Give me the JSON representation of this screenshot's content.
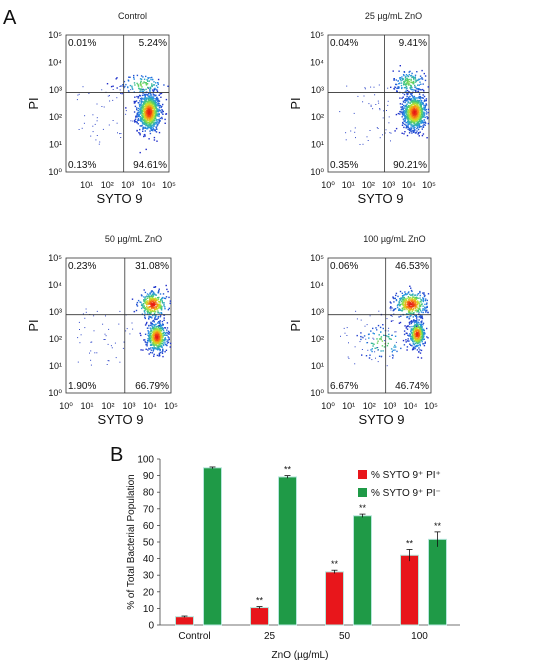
{
  "panel_a_label": "A",
  "panel_b_label": "B",
  "chart_data": [
    {
      "type": "scatter",
      "title": "Control",
      "xlabel": "SYTO 9",
      "ylabel": "PI",
      "x_scale": "log",
      "y_scale": "log",
      "x_ticks": [
        "10¹",
        "10²",
        "10³",
        "10⁴",
        "10⁵"
      ],
      "y_ticks": [
        "10⁰",
        "10¹",
        "10²",
        "10³",
        "10⁴",
        "10⁵"
      ],
      "quadrants": {
        "upper_left": "0.01%",
        "upper_right": "5.24%",
        "lower_left": "0.13%",
        "lower_right": "94.61%"
      }
    },
    {
      "type": "scatter",
      "title": "25 µg/mL ZnO",
      "xlabel": "SYTO 9",
      "ylabel": "PI",
      "x_scale": "log",
      "y_scale": "log",
      "x_ticks": [
        "10⁰",
        "10¹",
        "10²",
        "10³",
        "10⁴",
        "10⁵"
      ],
      "y_ticks": [
        "10⁰",
        "10¹",
        "10²",
        "10³",
        "10⁴",
        "10⁵"
      ],
      "quadrants": {
        "upper_left": "0.04%",
        "upper_right": "9.41%",
        "lower_left": "0.35%",
        "lower_right": "90.21%"
      }
    },
    {
      "type": "scatter",
      "title": "50 µg/mL ZnO",
      "xlabel": "SYTO 9",
      "ylabel": "PI",
      "x_scale": "log",
      "y_scale": "log",
      "x_ticks": [
        "10⁰",
        "10¹",
        "10²",
        "10³",
        "10⁴",
        "10⁵"
      ],
      "y_ticks": [
        "10⁰",
        "10¹",
        "10²",
        "10³",
        "10⁴",
        "10⁵"
      ],
      "quadrants": {
        "upper_left": "0.23%",
        "upper_right": "31.08%",
        "lower_left": "1.90%",
        "lower_right": "66.79%"
      }
    },
    {
      "type": "scatter",
      "title": "100 µg/mL ZnO",
      "xlabel": "SYTO 9",
      "ylabel": "PI",
      "x_scale": "log",
      "y_scale": "log",
      "x_ticks": [
        "10⁰",
        "10¹",
        "10²",
        "10³",
        "10⁴",
        "10⁵"
      ],
      "y_ticks": [
        "10⁰",
        "10¹",
        "10²",
        "10³",
        "10⁴",
        "10⁵"
      ],
      "quadrants": {
        "upper_left": "0.06%",
        "upper_right": "46.53%",
        "lower_left": "6.67%",
        "lower_right": "46.74%"
      }
    },
    {
      "type": "bar",
      "title": "",
      "xlabel": "ZnO (µg/mL)",
      "ylabel": "% of Total Bacterial Population",
      "categories": [
        "Control",
        "25",
        "50",
        "100"
      ],
      "ylim": [
        0,
        100
      ],
      "yticks": [
        0,
        10,
        20,
        30,
        40,
        50,
        60,
        70,
        80,
        90,
        100
      ],
      "legend_position": "top-right",
      "significance_marker": "**",
      "series": [
        {
          "name": "% SYTO 9⁺ PI⁺",
          "color": "#e8161b",
          "values": [
            5,
            10.5,
            32,
            42
          ],
          "errors": [
            0.4,
            0.6,
            1.0,
            3.5
          ],
          "significant": [
            false,
            true,
            true,
            true
          ]
        },
        {
          "name": "% SYTO 9⁺ PI⁻",
          "color": "#1f9a47",
          "values": [
            94.7,
            89.2,
            65.8,
            51.6
          ],
          "errors": [
            0.5,
            0.8,
            1.0,
            4.5
          ],
          "significant": [
            false,
            true,
            true,
            true
          ]
        }
      ]
    }
  ]
}
